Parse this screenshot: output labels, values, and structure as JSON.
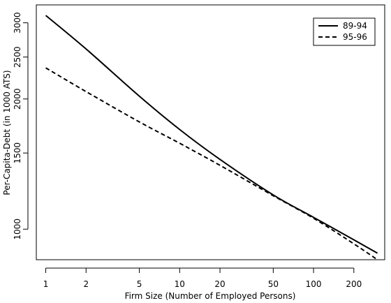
{
  "chart_data": {
    "type": "line",
    "title": "",
    "xlabel": "Firm Size (Number of Employed Persons)",
    "ylabel": "Per-Capita-Debt (in 1000 ATS)",
    "x_scale": "log",
    "y_scale": "log",
    "xlim": [
      0.85,
      340
    ],
    "ylim": [
      850,
      3300
    ],
    "x_ticks": [
      1,
      2,
      5,
      10,
      20,
      50,
      100,
      200
    ],
    "x_tick_labels": [
      "1",
      "2",
      "5",
      "10",
      "20",
      "50",
      "100",
      "200"
    ],
    "y_ticks": [
      1000,
      1500,
      2000,
      2500,
      3000
    ],
    "y_tick_labels": [
      "1000",
      "1500",
      "2000",
      "2500",
      "3000"
    ],
    "grid": false,
    "legend_position": "top-right",
    "series": [
      {
        "name": "89-94",
        "style": "solid",
        "x": [
          1,
          2,
          5,
          10,
          20,
          50,
          100,
          200,
          300
        ],
        "y": [
          3120,
          2610,
          2030,
          1700,
          1450,
          1200,
          1065,
          945,
          880
        ]
      },
      {
        "name": "95-96",
        "style": "dashed",
        "x": [
          1,
          2,
          5,
          10,
          20,
          50,
          100,
          200,
          300
        ],
        "y": [
          2360,
          2080,
          1770,
          1580,
          1405,
          1195,
          1060,
          925,
          850
        ]
      }
    ]
  }
}
